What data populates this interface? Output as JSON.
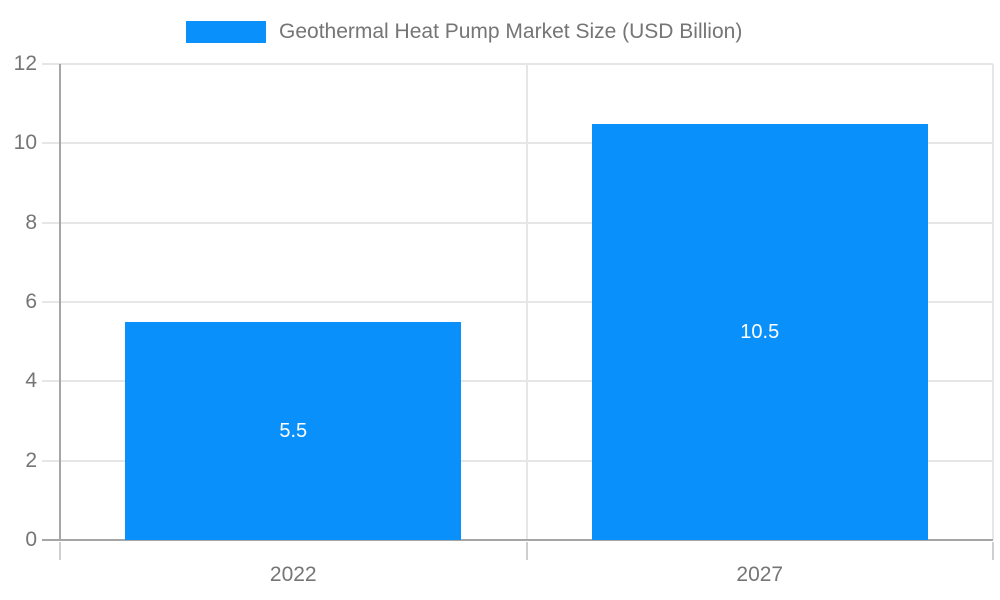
{
  "chart_data": {
    "type": "bar",
    "title": "Geothermal Heat Pump Market Size (USD Billion)",
    "categories": [
      "2022",
      "2027"
    ],
    "series": [
      {
        "name": "Geothermal Heat Pump Market Size (USD Billion)",
        "values": [
          5.5,
          10.5
        ]
      }
    ],
    "value_labels": [
      "5.5",
      "10.5"
    ],
    "xlabel": "",
    "ylabel": "",
    "ylim": [
      0,
      12
    ],
    "yticks": [
      0,
      2,
      4,
      6,
      8,
      10,
      12
    ],
    "grid": true,
    "legend_position": "top-center",
    "colors": {
      "bar": "#0a90fa",
      "gridline": "#e6e6e6",
      "axis": "#a6a6a6",
      "below_tick": "#cfcfcf",
      "tick_label": "#757575",
      "legend_text": "#757575",
      "value_label": "#ffffff",
      "background": "#ffffff"
    }
  }
}
